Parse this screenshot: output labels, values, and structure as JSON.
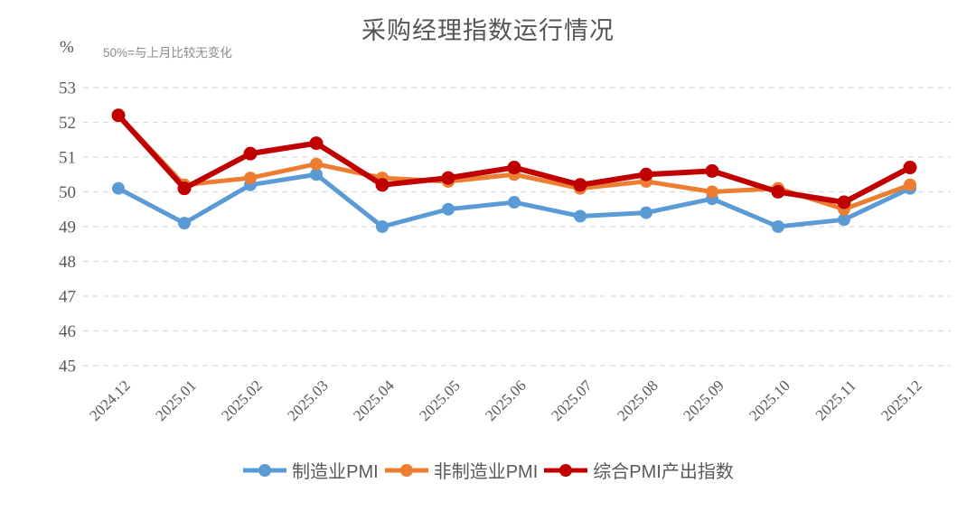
{
  "title": "采购经理指数运行情况",
  "note": "50%=与上月比较无变化",
  "y_axis_unit": "%",
  "chart_data": {
    "type": "line",
    "categories": [
      "2024.12",
      "2025.01",
      "2025.02",
      "2025.03",
      "2025.04",
      "2025.05",
      "2025.06",
      "2025.07",
      "2025.08",
      "2025.09",
      "2025.10",
      "2025.11",
      "2025.12"
    ],
    "series": [
      {
        "name": "制造业PMI",
        "color": "#5B9BD5",
        "values": [
          50.1,
          49.1,
          50.2,
          50.5,
          49.0,
          49.5,
          49.7,
          49.3,
          49.4,
          49.8,
          49.0,
          49.2,
          50.1
        ]
      },
      {
        "name": "非制造业PMI",
        "color": "#ED7D31",
        "values": [
          52.2,
          50.2,
          50.4,
          50.8,
          50.4,
          50.3,
          50.5,
          50.1,
          50.3,
          50.0,
          50.1,
          49.5,
          50.2
        ]
      },
      {
        "name": "综合PMI产出指数",
        "color": "#C00000",
        "values": [
          52.2,
          50.1,
          51.1,
          51.4,
          50.2,
          50.4,
          50.7,
          50.2,
          50.5,
          50.6,
          50.0,
          49.7,
          50.7
        ]
      }
    ],
    "ylim": [
      45,
      53
    ],
    "y_ticks": [
      53,
      52,
      51,
      50,
      49,
      48,
      47,
      46,
      45
    ],
    "grid": "horizontal-dashed",
    "grid_color": "#DBDBDB",
    "axis_text_color": "#595959",
    "legend_position": "bottom"
  }
}
